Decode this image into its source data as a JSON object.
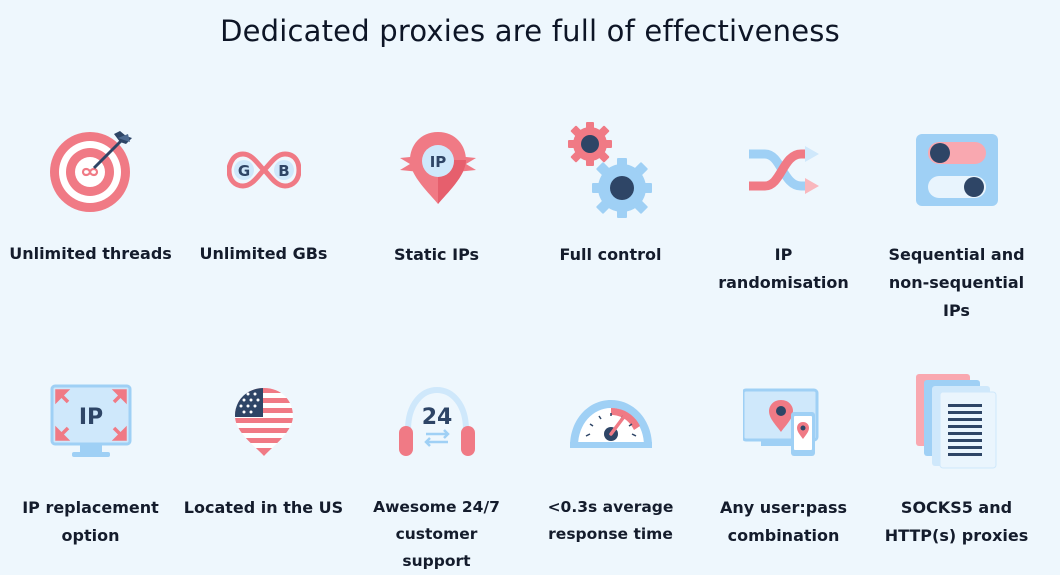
{
  "title": "Dedicated proxies are full of effectiveness",
  "features": [
    {
      "label": "Unlimited threads",
      "icon": "target-infinity-icon"
    },
    {
      "label": "Unlimited GBs",
      "icon": "gb-infinity-icon"
    },
    {
      "label": "Static IPs",
      "icon": "ip-pin-icon"
    },
    {
      "label": "Full control",
      "icon": "gears-icon"
    },
    {
      "label": "IP randomisation",
      "icon": "shuffle-icon"
    },
    {
      "label": "Sequential and non-sequential IPs",
      "icon": "toggles-icon"
    },
    {
      "label": "IP replacement option",
      "icon": "monitor-ip-icon"
    },
    {
      "label": "Located in the US",
      "icon": "us-flag-pin-icon"
    },
    {
      "label": "Awesome 24/7 customer support",
      "icon": "headset-24-icon"
    },
    {
      "label": "<0.3s average response time",
      "icon": "speedometer-icon"
    },
    {
      "label": "Any user:pass combination",
      "icon": "devices-location-icon"
    },
    {
      "label": "SOCKS5 and HTTP(s) proxies",
      "icon": "documents-stack-icon"
    }
  ],
  "icon_text": {
    "gb_g": "G",
    "gb_b": "B",
    "ip_pin": "IP",
    "monitor_ip": "IP",
    "headset_24": "24"
  },
  "colors": {
    "background": "#eef7fd",
    "coral": "#f07a85",
    "navy": "#2e4566",
    "light_blue": "#9fd0f5",
    "pale_blue": "#cfe8fb"
  }
}
